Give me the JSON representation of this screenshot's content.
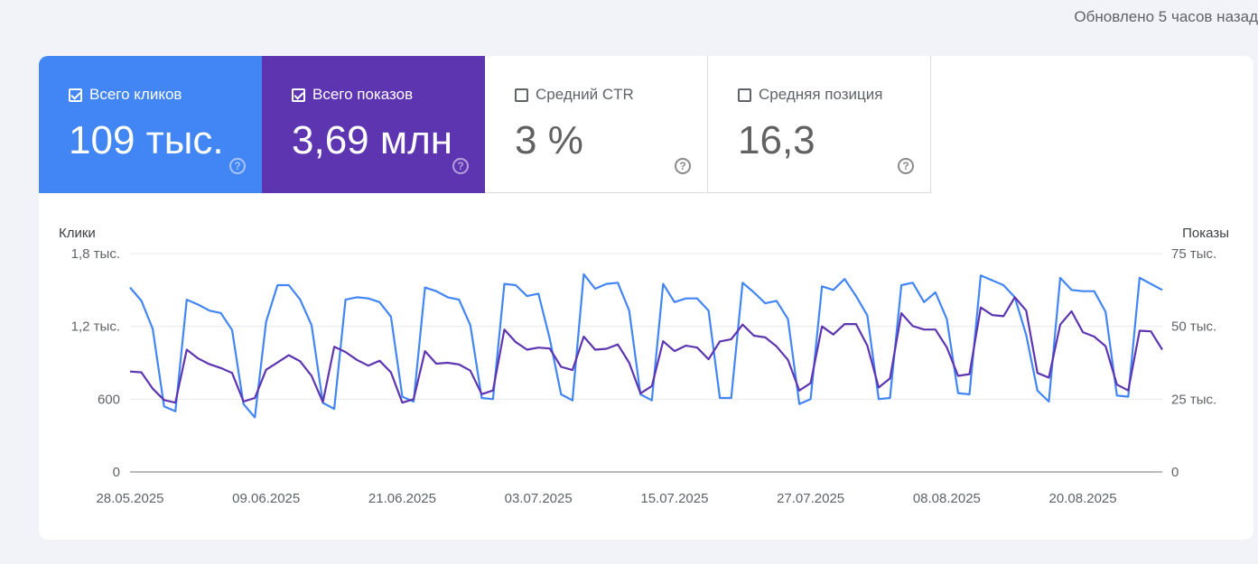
{
  "header": {
    "updated": "Обновлено 5 часов назад"
  },
  "tiles": [
    {
      "label": "Всего кликов",
      "value": "109 тыс.",
      "checked": true
    },
    {
      "label": "Всего показов",
      "value": "3,69 млн",
      "checked": true
    },
    {
      "label": "Средний CTR",
      "value": "3 %",
      "checked": false
    },
    {
      "label": "Средняя позиция",
      "value": "16,3",
      "checked": false
    }
  ],
  "colors": {
    "clicks": "#4285f4",
    "impressions": "#5e35b1"
  },
  "chart_data": {
    "type": "line",
    "ylabel_left": "Клики",
    "ylabel_right": "Показы",
    "yticks_left": [
      {
        "value": 0,
        "label": "0"
      },
      {
        "value": 600,
        "label": "600"
      },
      {
        "value": 1200,
        "label": "1,2 тыс."
      },
      {
        "value": 1800,
        "label": "1,8 тыс."
      }
    ],
    "yticks_right": [
      {
        "value": 0,
        "label": "0"
      },
      {
        "value": 25000,
        "label": "25 тыс."
      },
      {
        "value": 50000,
        "label": "50 тыс."
      },
      {
        "value": 75000,
        "label": "75 тыс."
      }
    ],
    "ylim_left": [
      0,
      1800
    ],
    "ylim_right": [
      0,
      75000
    ],
    "x_labels": [
      "28.05.2025",
      "09.06.2025",
      "21.06.2025",
      "03.07.2025",
      "15.07.2025",
      "27.07.2025",
      "08.08.2025",
      "20.08.2025"
    ],
    "x_label_index_step": 12,
    "grid": true,
    "series": [
      {
        "name": "Клики",
        "axis": "left",
        "values": [
          1520,
          1410,
          1180,
          540,
          500,
          1420,
          1380,
          1330,
          1310,
          1170,
          560,
          450,
          1240,
          1540,
          1540,
          1420,
          1210,
          570,
          520,
          1420,
          1440,
          1430,
          1400,
          1280,
          620,
          580,
          1520,
          1490,
          1440,
          1420,
          1210,
          610,
          600,
          1550,
          1540,
          1450,
          1470,
          1100,
          640,
          590,
          1630,
          1510,
          1550,
          1560,
          1330,
          640,
          590,
          1550,
          1400,
          1430,
          1430,
          1330,
          610,
          610,
          1560,
          1480,
          1390,
          1410,
          1260,
          560,
          600,
          1530,
          1500,
          1590,
          1450,
          1290,
          600,
          610,
          1540,
          1560,
          1400,
          1480,
          1260,
          650,
          640,
          1620,
          1580,
          1540,
          1440,
          1130,
          670,
          580,
          1600,
          1500,
          1490,
          1490,
          1320,
          630,
          620,
          1600,
          1550,
          1500
        ]
      },
      {
        "name": "Показы",
        "axis": "right",
        "values": [
          34500,
          34200,
          28600,
          24700,
          23800,
          42000,
          39000,
          37000,
          35700,
          34000,
          24200,
          25400,
          35100,
          37600,
          40100,
          38000,
          33000,
          24000,
          43000,
          41200,
          38500,
          36500,
          38200,
          34200,
          23800,
          25000,
          41500,
          37200,
          37500,
          36900,
          34800,
          26700,
          28000,
          48900,
          44600,
          42000,
          42700,
          42400,
          36100,
          35000,
          46500,
          42000,
          42300,
          43800,
          37500,
          27000,
          29500,
          44900,
          41500,
          43400,
          42700,
          38700,
          44800,
          45600,
          50600,
          46800,
          46200,
          43100,
          38500,
          28000,
          30500,
          50000,
          47200,
          50800,
          50800,
          43400,
          29000,
          32100,
          54500,
          50100,
          48900,
          48900,
          42800,
          33000,
          33600,
          56500,
          53900,
          53500,
          60000,
          55400,
          34000,
          32400,
          50600,
          55200,
          48000,
          46500,
          43200,
          30000,
          28000,
          48500,
          48300,
          42000
        ]
      }
    ]
  }
}
